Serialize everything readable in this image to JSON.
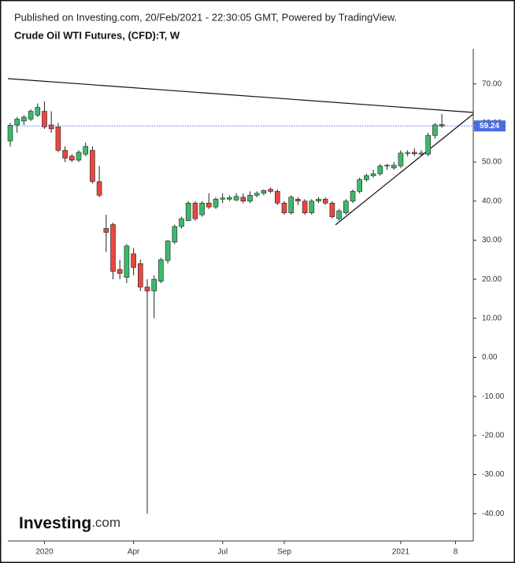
{
  "chart_data": {
    "type": "candlestick",
    "published": "Published on Investing.com, 20/Feb/2021 - 22:30:05 GMT, Powered by TradingView.",
    "title": "Crude Oil WTI Futures, (CFD):T, W",
    "logo": {
      "brand": "Investing",
      "suffix": ".com"
    },
    "categories": [
      null,
      null,
      null,
      null,
      null,
      "2020",
      null,
      null,
      null,
      null,
      null,
      null,
      null,
      null,
      null,
      null,
      null,
      null,
      "Apr",
      null,
      null,
      null,
      null,
      null,
      null,
      null,
      null,
      null,
      null,
      null,
      null,
      "Jul",
      null,
      null,
      null,
      null,
      null,
      null,
      null,
      null,
      "Sep",
      null,
      null,
      null,
      null,
      null,
      null,
      null,
      null,
      null,
      null,
      null,
      null,
      null,
      null,
      null,
      null,
      "2021",
      null,
      null,
      null,
      null,
      null,
      null,
      null,
      "8"
    ],
    "open": [
      55.4,
      59.5,
      60.5,
      61,
      62,
      63,
      59.5,
      59,
      53,
      51.5,
      50.5,
      52,
      53,
      45,
      33,
      34,
      22.5,
      20.5,
      26.5,
      24,
      18,
      17,
      19.5,
      24.8,
      29.5,
      33.5,
      35,
      39.5,
      36.5,
      39.5,
      38.5,
      40.5,
      40.5,
      40.3,
      41,
      40,
      41.5,
      42,
      43,
      42.5,
      39.5,
      37,
      40.5,
      40,
      37,
      40,
      40.5,
      39.5,
      35.5,
      37,
      40,
      42.5,
      45.5,
      46.5,
      47,
      49,
      48.5,
      49,
      52.2,
      52.5,
      52,
      52,
      56.8,
      59.6,
      null,
      null
    ],
    "high": [
      60,
      61.5,
      62,
      63.5,
      65,
      65.5,
      63,
      60,
      54,
      52,
      53,
      55,
      54,
      49,
      36.5,
      34.5,
      25,
      29,
      28,
      25,
      20,
      21,
      25.5,
      30,
      34,
      36,
      40,
      40,
      40,
      42,
      41,
      42,
      41.5,
      42,
      42,
      42.5,
      42.5,
      43,
      43.5,
      43,
      40,
      41.5,
      41,
      40.5,
      40.5,
      41,
      41,
      40,
      38,
      40.5,
      43,
      46,
      47,
      48,
      49.5,
      49.5,
      50,
      53,
      53,
      53.5,
      53,
      57.5,
      60,
      62.3,
      null,
      null
    ],
    "low": [
      54,
      57.5,
      59.5,
      60.5,
      61.5,
      58.5,
      57.5,
      52.5,
      50,
      50,
      50,
      51.5,
      44.5,
      41,
      27,
      20,
      20,
      19,
      21,
      17,
      -40,
      10,
      19,
      24,
      29,
      33,
      35,
      35,
      36,
      38,
      38,
      39.5,
      40,
      40,
      39.5,
      39.5,
      41,
      41.5,
      42,
      39,
      36.5,
      36.5,
      39,
      36.5,
      36.5,
      39.5,
      39,
      35.5,
      35,
      36.5,
      39.5,
      42,
      45,
      46,
      46.5,
      48,
      48,
      48.5,
      51.5,
      51.5,
      51.5,
      51.5,
      56,
      58.8,
      null,
      null
    ],
    "close": [
      59.4,
      61,
      61.5,
      63,
      64,
      59,
      58.5,
      53,
      51,
      50.5,
      52.5,
      54,
      45,
      41.5,
      32,
      22,
      21.5,
      28.5,
      23,
      18,
      17,
      20,
      25,
      29.8,
      33.5,
      35.5,
      39.5,
      35.5,
      39.5,
      38.5,
      40.5,
      40.8,
      40.9,
      41.2,
      40,
      41.5,
      42,
      42.7,
      42.5,
      39.5,
      37,
      41,
      40,
      37,
      40,
      40.5,
      39.5,
      36,
      37.5,
      40,
      42.5,
      45.5,
      46.5,
      47,
      49,
      49.2,
      49.2,
      52.3,
      52.4,
      52.1,
      52.3,
      56.8,
      59.5,
      59.2,
      null,
      null
    ],
    "up_color": "#3cb96b",
    "down_color": "#e8473f",
    "ylim": [
      -47,
      79
    ],
    "yticks": [
      {
        "value": 70,
        "label": "70.00"
      },
      {
        "value": 60,
        "label": "60.00"
      },
      {
        "value": 50,
        "label": "50.00"
      },
      {
        "value": 40,
        "label": "40.00"
      },
      {
        "value": 30,
        "label": "30.00"
      },
      {
        "value": 20,
        "label": "20.00"
      },
      {
        "value": 10,
        "label": "10.00"
      },
      {
        "value": 0,
        "label": "0.00"
      },
      {
        "value": -10,
        "label": "-10.00"
      },
      {
        "value": -20,
        "label": "-20.00"
      },
      {
        "value": -30,
        "label": "-30.00"
      },
      {
        "value": -40,
        "label": "-40.00"
      }
    ],
    "last_price": {
      "value": 59.24,
      "label": "59.24",
      "color": "#4a6ee0"
    }
  }
}
